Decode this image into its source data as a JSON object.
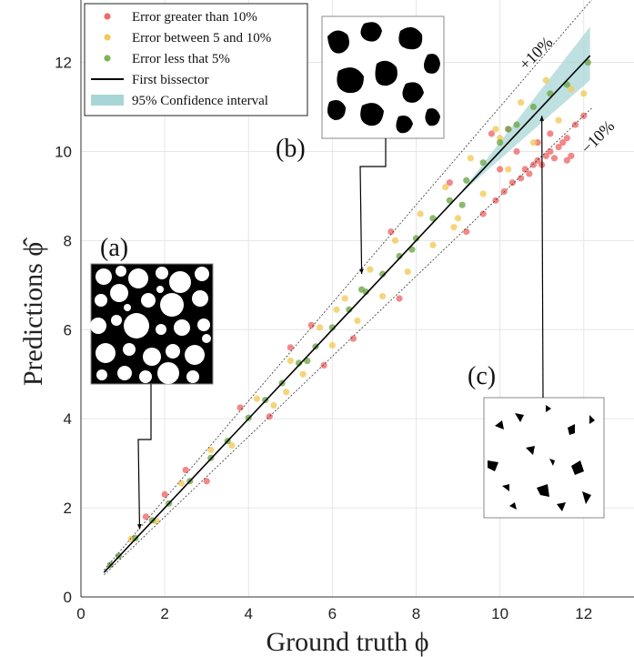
{
  "chart_data": {
    "type": "scatter",
    "xlabel": "Ground truth ϕ",
    "ylabel": "Predictions ϕ̂",
    "xlim": [
      0,
      13.2
    ],
    "ylim": [
      0,
      13.4
    ],
    "x_ticks": [
      "0",
      "2",
      "4",
      "6",
      "8",
      "10",
      "12"
    ],
    "y_ticks": [
      "0",
      "2",
      "4",
      "6",
      "8",
      "10",
      "12"
    ],
    "grid": true,
    "legend_position": "top-left",
    "legend": [
      {
        "label": "Error greater than 10%",
        "marker": "dot",
        "color": "#f06a6a"
      },
      {
        "label": "Error between 5 and 10%",
        "marker": "dot",
        "color": "#f2c95a"
      },
      {
        "label": "Error less that 5%",
        "marker": "dot",
        "color": "#7fb356"
      },
      {
        "label": "First bissector",
        "marker": "line",
        "color": "#000000"
      },
      {
        "label": "95% Confidence interval",
        "marker": "patch",
        "color": "#a8d5d5"
      }
    ],
    "colors": {
      "red": "#f06a6a",
      "yellow": "#f2c95a",
      "green": "#6fa84a",
      "band": "#a8d5d5"
    },
    "bissector": [
      [
        0.55,
        0.55
      ],
      [
        12.15,
        12.15
      ]
    ],
    "confidence_band": {
      "x": [
        9.0,
        12.15
      ],
      "lower": [
        9.0,
        11.6
      ],
      "upper": [
        9.0,
        12.8
      ]
    },
    "tolerance_lines": [
      {
        "label": "+10%",
        "factor": 1.1,
        "x_range": [
          0.55,
          12.45
        ]
      },
      {
        "label": "−10%",
        "factor": 0.9,
        "x_range": [
          0.55,
          12.2
        ]
      }
    ],
    "annotations": [
      {
        "label": "(a)",
        "target": [
          1.4,
          1.52
        ]
      },
      {
        "label": "(b)",
        "target": [
          6.7,
          7.25
        ]
      },
      {
        "label": "(c)",
        "target": [
          11.0,
          10.8
        ]
      }
    ],
    "series": [
      {
        "name": "Error greater than 10%",
        "color": "red",
        "points": [
          [
            1.55,
            1.8
          ],
          [
            2.0,
            2.3
          ],
          [
            2.5,
            2.85
          ],
          [
            3.0,
            2.6
          ],
          [
            3.8,
            4.25
          ],
          [
            4.5,
            4.05
          ],
          [
            5.0,
            5.6
          ],
          [
            5.5,
            6.1
          ],
          [
            5.8,
            5.2
          ],
          [
            6.5,
            5.8
          ],
          [
            7.4,
            8.2
          ],
          [
            7.6,
            6.7
          ],
          [
            8.8,
            9.3
          ],
          [
            9.2,
            8.2
          ],
          [
            9.6,
            8.6
          ],
          [
            9.9,
            8.9
          ],
          [
            10.1,
            9.1
          ],
          [
            10.3,
            9.3
          ],
          [
            10.5,
            9.4
          ],
          [
            10.6,
            9.6
          ],
          [
            10.7,
            9.5
          ],
          [
            10.8,
            9.7
          ],
          [
            10.9,
            9.8
          ],
          [
            11.0,
            9.7
          ],
          [
            11.1,
            9.9
          ],
          [
            11.2,
            10.0
          ],
          [
            11.3,
            9.85
          ],
          [
            11.4,
            10.1
          ],
          [
            11.5,
            10.2
          ],
          [
            11.6,
            10.3
          ],
          [
            11.7,
            9.9
          ],
          [
            11.8,
            10.6
          ],
          [
            12.0,
            10.8
          ],
          [
            10.2,
            10.5
          ],
          [
            10.4,
            10.0
          ],
          [
            9.8,
            10.4
          ],
          [
            11.2,
            10.4
          ],
          [
            10.9,
            10.2
          ],
          [
            10.0,
            9.6
          ],
          [
            11.6,
            9.8
          ]
        ]
      },
      {
        "name": "Error between 5 and 10%",
        "color": "yellow",
        "points": [
          [
            1.2,
            1.3
          ],
          [
            1.8,
            1.7
          ],
          [
            2.4,
            2.55
          ],
          [
            3.1,
            3.3
          ],
          [
            3.6,
            3.4
          ],
          [
            4.2,
            4.45
          ],
          [
            4.6,
            4.3
          ],
          [
            5.0,
            5.3
          ],
          [
            5.3,
            5.0
          ],
          [
            5.7,
            6.05
          ],
          [
            6.0,
            5.65
          ],
          [
            6.3,
            6.7
          ],
          [
            6.6,
            6.2
          ],
          [
            6.9,
            7.35
          ],
          [
            7.2,
            6.75
          ],
          [
            7.5,
            8.0
          ],
          [
            7.8,
            7.3
          ],
          [
            8.1,
            8.6
          ],
          [
            8.4,
            7.9
          ],
          [
            8.7,
            9.2
          ],
          [
            9.0,
            8.5
          ],
          [
            9.3,
            9.85
          ],
          [
            9.6,
            9.05
          ],
          [
            9.9,
            10.5
          ],
          [
            10.2,
            9.6
          ],
          [
            10.5,
            11.1
          ],
          [
            10.8,
            10.2
          ],
          [
            11.1,
            11.6
          ],
          [
            11.4,
            10.7
          ],
          [
            11.7,
            11.4
          ],
          [
            12.0,
            11.3
          ],
          [
            10.0,
            10.3
          ],
          [
            8.9,
            8.3
          ],
          [
            6.1,
            6.45
          ],
          [
            4.9,
            4.6
          ]
        ]
      },
      {
        "name": "Error less that 5%",
        "color": "green",
        "points": [
          [
            0.7,
            0.72
          ],
          [
            0.9,
            0.92
          ],
          [
            1.3,
            1.32
          ],
          [
            1.7,
            1.72
          ],
          [
            2.1,
            2.1
          ],
          [
            2.6,
            2.6
          ],
          [
            3.1,
            3.12
          ],
          [
            3.5,
            3.5
          ],
          [
            4.0,
            4.02
          ],
          [
            4.4,
            4.42
          ],
          [
            4.8,
            4.8
          ],
          [
            5.2,
            5.25
          ],
          [
            5.6,
            5.62
          ],
          [
            6.0,
            6.05
          ],
          [
            6.4,
            6.45
          ],
          [
            6.8,
            6.85
          ],
          [
            7.2,
            7.25
          ],
          [
            7.6,
            7.65
          ],
          [
            8.0,
            8.05
          ],
          [
            8.4,
            8.5
          ],
          [
            8.8,
            8.9
          ],
          [
            9.2,
            9.35
          ],
          [
            9.6,
            9.75
          ],
          [
            10.0,
            10.2
          ],
          [
            10.4,
            10.6
          ],
          [
            10.8,
            11.0
          ],
          [
            11.2,
            11.3
          ],
          [
            11.6,
            11.5
          ],
          [
            12.1,
            12.0
          ],
          [
            9.1,
            8.8
          ],
          [
            10.2,
            10.5
          ],
          [
            7.9,
            7.8
          ],
          [
            6.7,
            6.9
          ],
          [
            5.4,
            5.3
          ]
        ]
      }
    ]
  }
}
